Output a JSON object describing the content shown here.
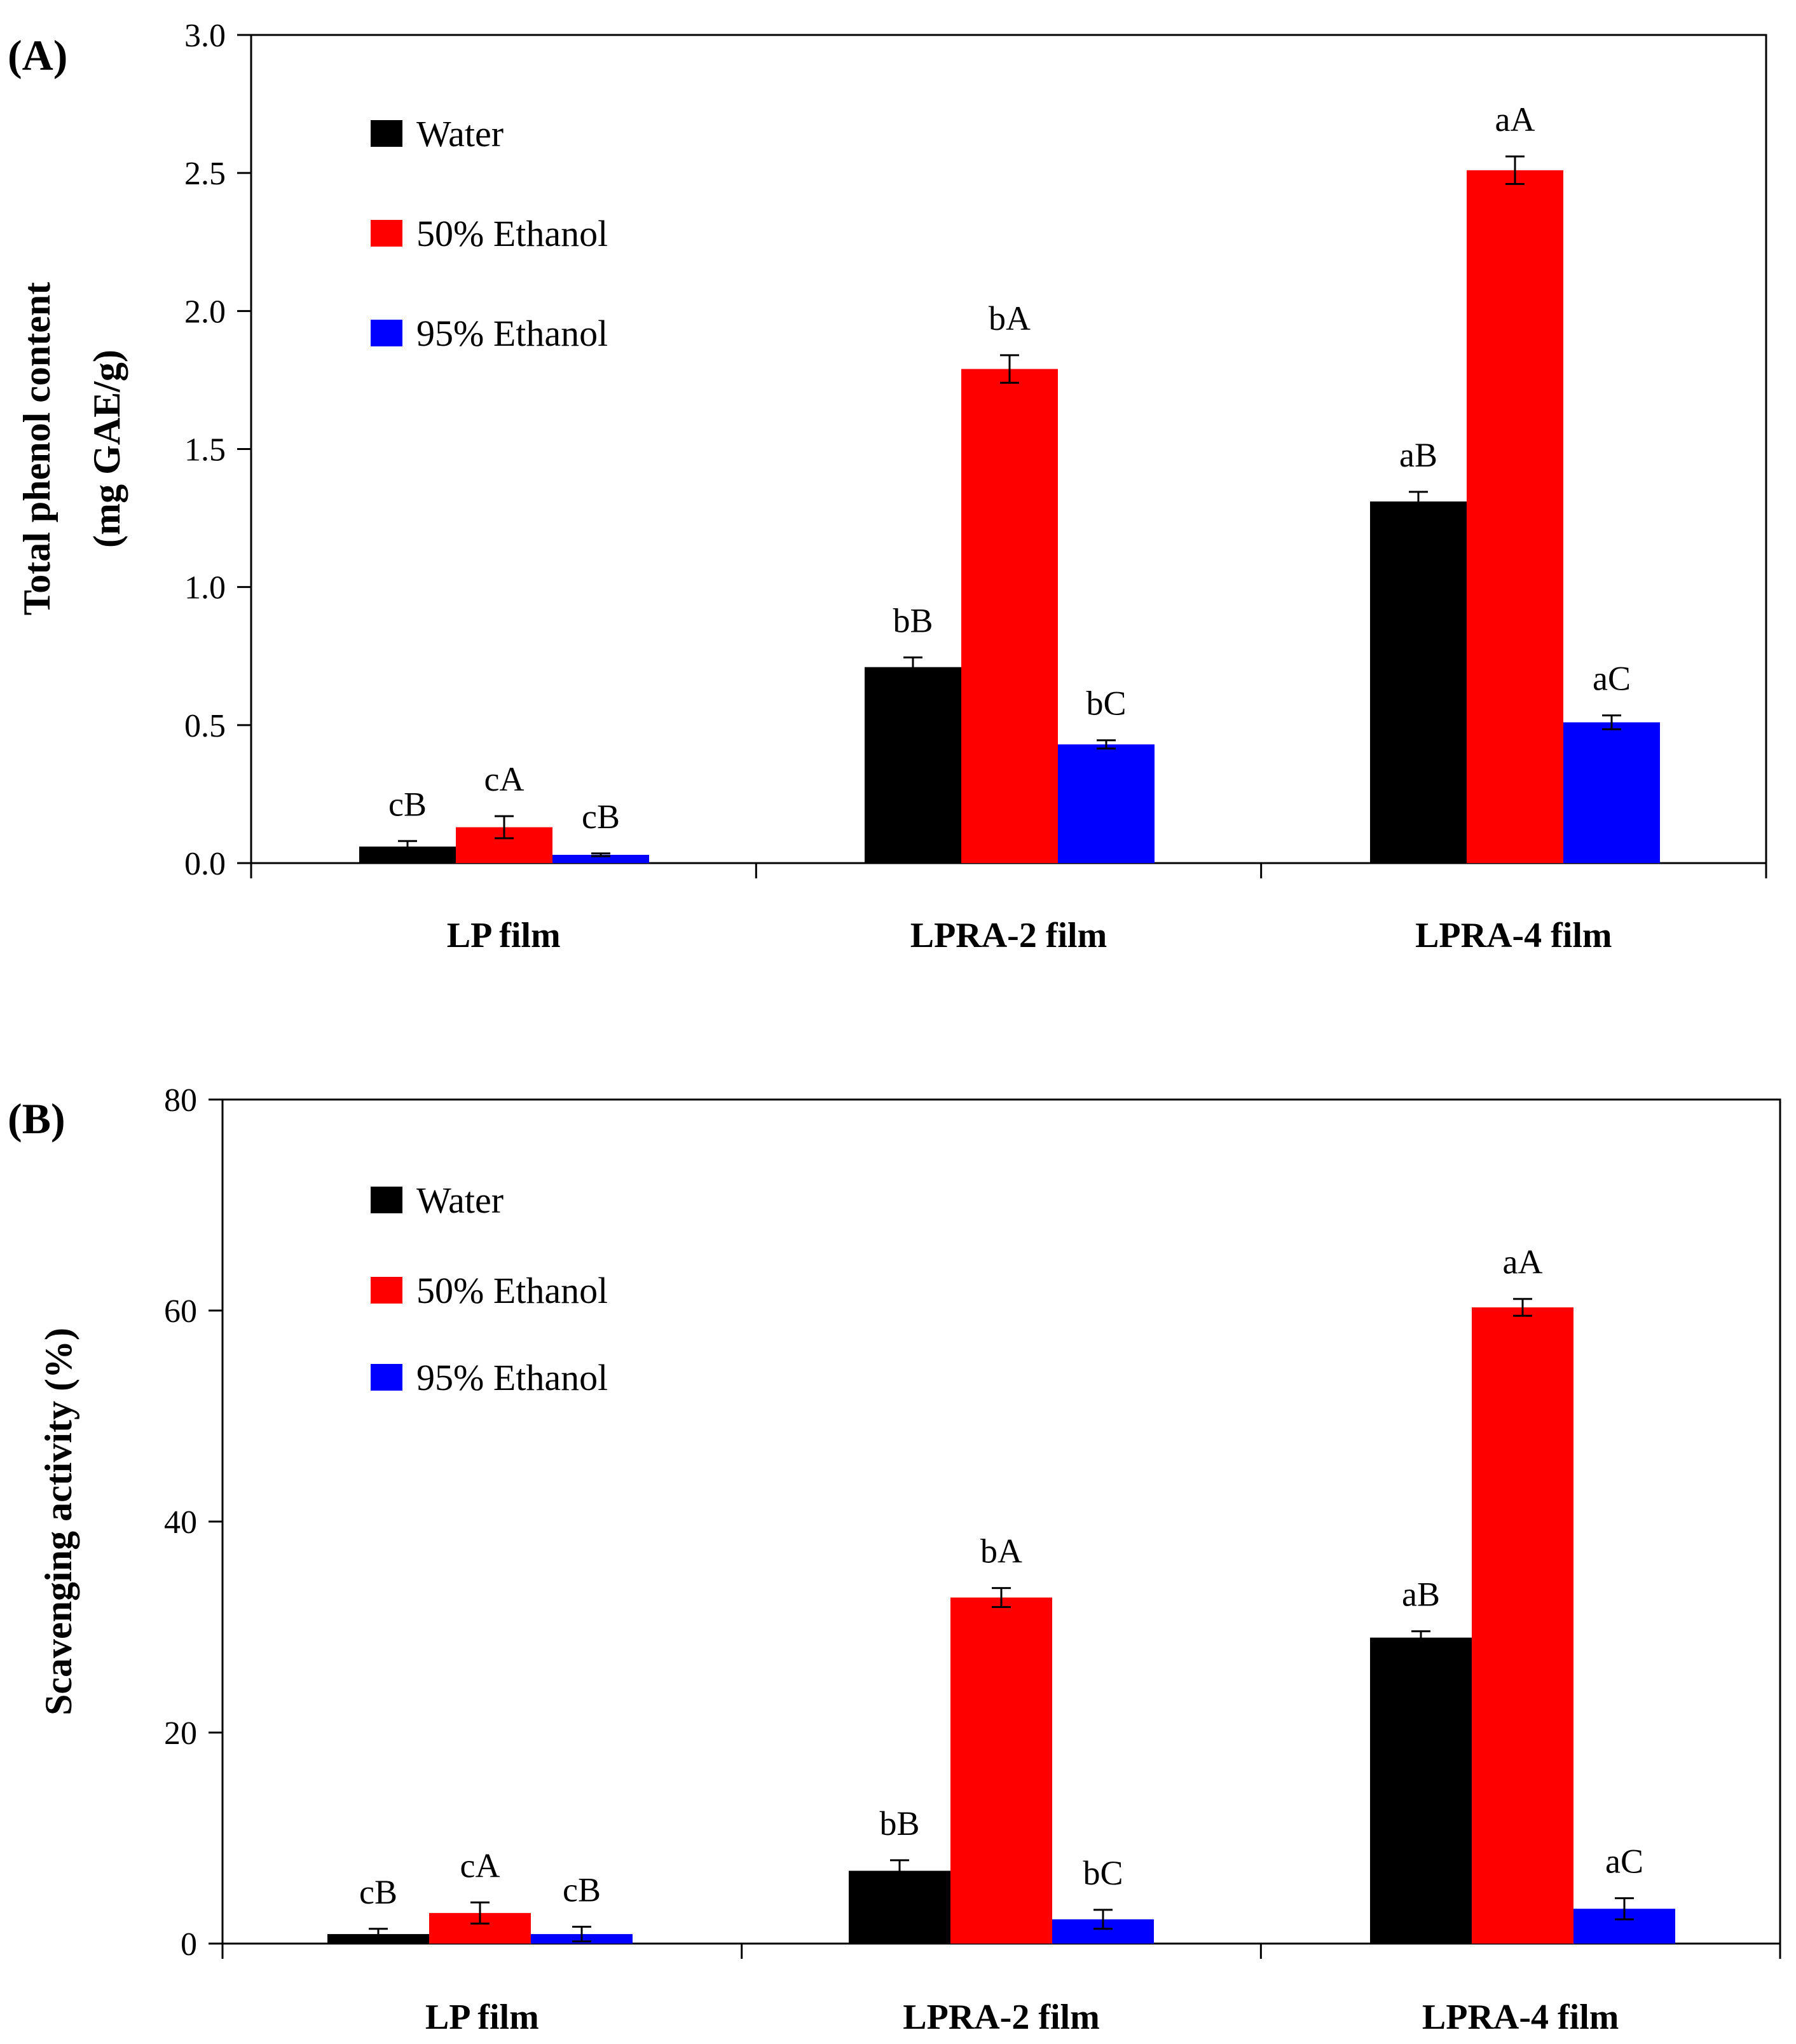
{
  "chart_data": [
    {
      "panel_label": "(A)",
      "type": "bar",
      "ylabel_lines": [
        "Total phenol content",
        "(mg GAE/g)"
      ],
      "xlabel": "",
      "ylim": [
        0,
        3.0
      ],
      "yticks": [
        0,
        0.5,
        1.0,
        1.5,
        2.0,
        2.5,
        3.0
      ],
      "ytick_labels": [
        "0.0",
        "0.5",
        "1.0",
        "1.5",
        "2.0",
        "2.5",
        "3.0"
      ],
      "categories": [
        "LP film",
        "LPRA-2 film",
        "LPRA-4 film"
      ],
      "legend_position": "top-left",
      "series": [
        {
          "name": "Water",
          "color": "#000000",
          "values": [
            0.06,
            0.71,
            1.31
          ],
          "errors": [
            0.02,
            0.035,
            0.035
          ],
          "labels": [
            "cB",
            "bB",
            "aB"
          ]
        },
        {
          "name": "50% Ethanol",
          "color": "#ff0000",
          "values": [
            0.13,
            1.79,
            2.51
          ],
          "errors": [
            0.04,
            0.05,
            0.05
          ],
          "labels": [
            "cA",
            "bA",
            "aA"
          ]
        },
        {
          "name": "95% Ethanol",
          "color": "#0000ff",
          "values": [
            0.03,
            0.43,
            0.51
          ],
          "errors": [
            0.005,
            0.015,
            0.025
          ],
          "labels": [
            "cB",
            "bC",
            "aC"
          ]
        }
      ]
    },
    {
      "panel_label": "(B)",
      "type": "bar",
      "ylabel_lines": [
        "Scavenging activity (%)"
      ],
      "xlabel": "",
      "ylim": [
        0,
        80
      ],
      "yticks": [
        0,
        20,
        40,
        60,
        80
      ],
      "ytick_labels": [
        "0",
        "20",
        "40",
        "60",
        "80"
      ],
      "categories": [
        "LP film",
        "LPRA-2 film",
        "LPRA-4 film"
      ],
      "legend_position": "top-left",
      "series": [
        {
          "name": "Water",
          "color": "#000000",
          "values": [
            0.9,
            6.9,
            29.0
          ],
          "errors": [
            0.5,
            1.0,
            0.6
          ],
          "labels": [
            "cB",
            "bB",
            "aB"
          ]
        },
        {
          "name": "50% Ethanol",
          "color": "#ff0000",
          "values": [
            2.9,
            32.8,
            60.3
          ],
          "errors": [
            1.0,
            0.9,
            0.8
          ],
          "labels": [
            "cA",
            "bA",
            "aA"
          ]
        },
        {
          "name": "95% Ethanol",
          "color": "#0000ff",
          "values": [
            0.9,
            2.3,
            3.3
          ],
          "errors": [
            0.7,
            0.9,
            1.0
          ],
          "labels": [
            "cB",
            "bC",
            "aC"
          ]
        }
      ]
    }
  ]
}
